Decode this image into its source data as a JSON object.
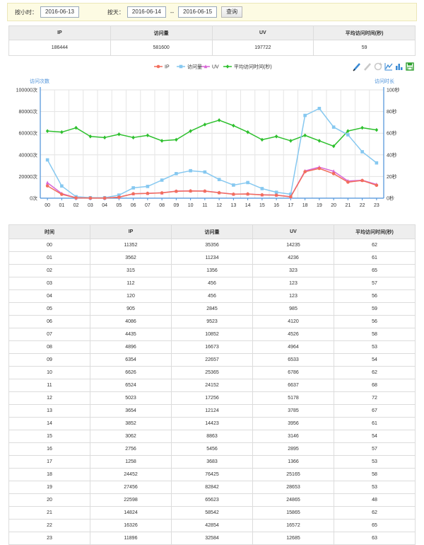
{
  "filters": {
    "by_hour_label": "按小时：",
    "by_hour_date": "2016-06-13",
    "by_day_label": "按天：",
    "start_date": "2016-06-14",
    "range_sep": "--",
    "end_date": "2016-06-15",
    "query_label": "查询"
  },
  "summary": {
    "headers": [
      "IP",
      "访问量",
      "UV",
      "平均访问时间(秒)"
    ],
    "values": [
      "186444",
      "581600",
      "197722",
      "59"
    ]
  },
  "toolbar_icons": [
    "pencil-icon",
    "eraser-icon",
    "refresh-icon",
    "line-chart-icon",
    "bar-chart-icon",
    "save-icon"
  ],
  "chart_data": {
    "type": "line",
    "legend_position": "top-center",
    "grid": true,
    "categories": [
      "00",
      "01",
      "02",
      "03",
      "04",
      "05",
      "06",
      "07",
      "08",
      "09",
      "10",
      "11",
      "12",
      "13",
      "14",
      "15",
      "16",
      "17",
      "18",
      "19",
      "20",
      "21",
      "22",
      "23"
    ],
    "left_axis_title": "访问次数",
    "right_axis_title": "访问时长",
    "left_ticks": [
      "100000次",
      "80000次",
      "60000次",
      "40000次",
      "20000次",
      "0次"
    ],
    "right_ticks": [
      "100秒",
      "80秒",
      "60秒",
      "40秒",
      "20秒",
      "0秒"
    ],
    "ylim_left": [
      0,
      100000
    ],
    "ylim_right": [
      0,
      100
    ],
    "series": [
      {
        "name": "IP",
        "axis": "left",
        "color": "#f26e5c",
        "marker": "circle",
        "values": [
          11352,
          3562,
          315,
          112,
          120,
          905,
          4086,
          4435,
          4896,
          6354,
          6626,
          6524,
          5023,
          3654,
          3852,
          3062,
          2756,
          1258,
          24452,
          27456,
          22598,
          14824,
          16326,
          11896
        ]
      },
      {
        "name": "访问量",
        "axis": "left",
        "color": "#86c8f0",
        "marker": "square",
        "values": [
          35356,
          11234,
          1356,
          456,
          456,
          2845,
          9523,
          10852,
          16673,
          22657,
          25365,
          24152,
          17256,
          12124,
          14423,
          8863,
          5456,
          3683,
          76425,
          82842,
          65623,
          58542,
          42854,
          32584
        ]
      },
      {
        "name": "UV",
        "axis": "left",
        "color": "#d865d6",
        "marker": "triangle",
        "values": [
          14235,
          4236,
          323,
          123,
          123,
          985,
          4120,
          4526,
          4964,
          6533,
          6786,
          6637,
          5178,
          3785,
          3956,
          3146,
          2895,
          1366,
          25165,
          28653,
          24865,
          15865,
          16572,
          12685
        ]
      },
      {
        "name": "平均访问时间(秒)",
        "axis": "right",
        "color": "#2ec02e",
        "marker": "diamond",
        "values": [
          62,
          61,
          65,
          57,
          56,
          59,
          56,
          58,
          53,
          54,
          62,
          68,
          72,
          67,
          61,
          54,
          57,
          53,
          58,
          53,
          48,
          62,
          65,
          63
        ]
      }
    ]
  },
  "hourly_table": {
    "headers": [
      "时间",
      "IP",
      "访问量",
      "UV",
      "平均访问时间(秒)"
    ],
    "rows": [
      [
        "00",
        "11352",
        "35356",
        "14235",
        "62"
      ],
      [
        "01",
        "3562",
        "11234",
        "4236",
        "61"
      ],
      [
        "02",
        "315",
        "1356",
        "323",
        "65"
      ],
      [
        "03",
        "112",
        "456",
        "123",
        "57"
      ],
      [
        "04",
        "120",
        "456",
        "123",
        "56"
      ],
      [
        "05",
        "905",
        "2845",
        "985",
        "59"
      ],
      [
        "06",
        "4086",
        "9523",
        "4120",
        "56"
      ],
      [
        "07",
        "4435",
        "10852",
        "4526",
        "58"
      ],
      [
        "08",
        "4896",
        "16673",
        "4964",
        "53"
      ],
      [
        "09",
        "6354",
        "22657",
        "6533",
        "54"
      ],
      [
        "10",
        "6626",
        "25365",
        "6786",
        "62"
      ],
      [
        "11",
        "6524",
        "24152",
        "6637",
        "68"
      ],
      [
        "12",
        "5023",
        "17256",
        "5178",
        "72"
      ],
      [
        "13",
        "3654",
        "12124",
        "3785",
        "67"
      ],
      [
        "14",
        "3852",
        "14423",
        "3956",
        "61"
      ],
      [
        "15",
        "3062",
        "8863",
        "3146",
        "54"
      ],
      [
        "16",
        "2756",
        "5456",
        "2895",
        "57"
      ],
      [
        "17",
        "1258",
        "3683",
        "1366",
        "53"
      ],
      [
        "18",
        "24452",
        "76425",
        "25165",
        "58"
      ],
      [
        "19",
        "27456",
        "82842",
        "28653",
        "53"
      ],
      [
        "20",
        "22598",
        "65623",
        "24865",
        "48"
      ],
      [
        "21",
        "14824",
        "58542",
        "15865",
        "62"
      ],
      [
        "22",
        "16326",
        "42854",
        "16572",
        "65"
      ],
      [
        "23",
        "11896",
        "32584",
        "12685",
        "63"
      ]
    ]
  }
}
